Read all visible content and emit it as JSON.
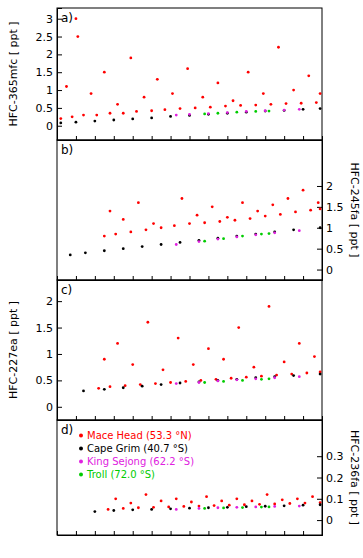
{
  "chart_data": [
    {
      "type": "scatter",
      "title": "a)",
      "y_label": "HFC-365mfc [ ppt ]",
      "xlim": [
        0,
        14
      ],
      "xticks": [
        0,
        1,
        2,
        3,
        4,
        5,
        6,
        7,
        8,
        9,
        10,
        11,
        12,
        13,
        14
      ],
      "tick_labels": "y",
      "ylim": [
        -0.4,
        3.3
      ],
      "yticks": [
        0,
        0.5,
        1,
        1.5,
        2,
        2.5,
        3
      ],
      "series": [
        {
          "color": "#ff0000",
          "marker": "circle",
          "x": [
            0.2,
            0.5,
            0.8,
            1.0,
            1.1,
            1.4,
            1.8,
            2.1,
            2.5,
            2.8,
            3.2,
            3.5,
            3.9,
            4.2,
            4.6,
            5.0,
            5.3,
            5.7,
            6.1,
            6.5,
            6.9,
            7.3,
            7.7,
            8.1,
            8.5,
            8.9,
            9.3,
            9.7,
            10.1,
            10.5,
            10.9,
            11.3,
            11.7,
            12.1,
            12.5,
            12.9,
            13.3,
            13.7,
            13.9
          ],
          "values": [
            0.2,
            1.1,
            0.25,
            3.0,
            2.5,
            0.3,
            0.9,
            0.3,
            1.5,
            0.35,
            0.6,
            0.35,
            1.9,
            0.4,
            0.8,
            0.42,
            1.3,
            0.45,
            0.9,
            0.48,
            1.6,
            0.5,
            0.8,
            0.52,
            1.2,
            0.55,
            0.7,
            0.57,
            1.5,
            0.58,
            0.9,
            0.6,
            2.2,
            0.62,
            1.0,
            0.63,
            1.4,
            0.65,
            0.9
          ]
        },
        {
          "color": "#000000",
          "marker": "circle",
          "x": [
            0.2,
            1,
            2,
            3,
            4,
            5,
            6,
            7,
            8,
            9,
            10,
            11,
            12,
            13,
            13.9
          ],
          "values": [
            0.08,
            0.1,
            0.13,
            0.16,
            0.19,
            0.22,
            0.26,
            0.29,
            0.32,
            0.35,
            0.38,
            0.41,
            0.43,
            0.46,
            0.48
          ]
        },
        {
          "color": "#e020e0",
          "marker": "circle",
          "x": [
            6.3,
            7,
            8,
            9,
            10,
            11,
            12,
            12.8
          ],
          "values": [
            0.3,
            0.32,
            0.34,
            0.37,
            0.4,
            0.42,
            0.44,
            0.46
          ]
        },
        {
          "color": "#00cc00",
          "marker": "circle",
          "x": [
            7.8,
            8.5,
            9.5,
            10.5,
            11.2
          ],
          "values": [
            0.33,
            0.35,
            0.38,
            0.4,
            0.41
          ]
        }
      ]
    },
    {
      "type": "scatter",
      "title": "b)",
      "y2_label": "HFC-245fa [ ppt ]",
      "xlim": [
        0,
        14
      ],
      "xticks": [
        0,
        1,
        2,
        3,
        4,
        5,
        6,
        7,
        8,
        9,
        10,
        11,
        12,
        13,
        14
      ],
      "tick_labels": "y",
      "y2lim": [
        -0.25,
        3.1
      ],
      "y2ticks": [
        0,
        0.5,
        1,
        1.5,
        2
      ],
      "series": [
        {
          "color": "#ff0000",
          "marker": "circle",
          "axis": "y2",
          "x": [
            2.5,
            2.8,
            3.1,
            3.5,
            3.9,
            4.3,
            4.7,
            5.1,
            5.5,
            6.2,
            6.6,
            7.0,
            7.4,
            7.8,
            8.2,
            8.6,
            9.0,
            9.4,
            9.8,
            10.2,
            10.6,
            11.0,
            11.4,
            11.8,
            12.2,
            12.6,
            13.0,
            13.4,
            13.8,
            13.9
          ],
          "values": [
            0.8,
            1.4,
            0.85,
            1.2,
            0.9,
            1.6,
            0.95,
            1.1,
            1.0,
            1.05,
            1.7,
            1.1,
            1.3,
            1.12,
            1.5,
            1.15,
            1.25,
            1.18,
            1.6,
            1.22,
            1.4,
            1.28,
            1.55,
            1.32,
            1.7,
            1.38,
            1.9,
            1.42,
            1.6,
            1.45
          ]
        },
        {
          "color": "#000000",
          "marker": "circle",
          "axis": "y2",
          "x": [
            0.7,
            1.5,
            2.5,
            3.5,
            4.5,
            5.5,
            6.5,
            7.5,
            8.5,
            9.5,
            10.5,
            11.5,
            12.5,
            13.9
          ],
          "values": [
            0.35,
            0.4,
            0.45,
            0.5,
            0.55,
            0.6,
            0.65,
            0.7,
            0.75,
            0.8,
            0.85,
            0.9,
            0.95,
            1.0
          ]
        },
        {
          "color": "#e020e0",
          "marker": "circle",
          "axis": "y2",
          "x": [
            6.3,
            7.5,
            8.5,
            9.5,
            10.5,
            11.5,
            12.8
          ],
          "values": [
            0.6,
            0.67,
            0.73,
            0.78,
            0.83,
            0.88,
            0.93
          ]
        },
        {
          "color": "#00cc00",
          "marker": "circle",
          "axis": "y2",
          "x": [
            7.8,
            8.8,
            9.8,
            10.8,
            11.2
          ],
          "values": [
            0.68,
            0.74,
            0.8,
            0.85,
            0.86
          ]
        }
      ]
    },
    {
      "type": "scatter",
      "title": "c)",
      "y_label": "HFC-227ea [ ppt ]",
      "xlim": [
        0,
        14
      ],
      "xticks": [
        0,
        1,
        2,
        3,
        4,
        5,
        6,
        7,
        8,
        9,
        10,
        11,
        12,
        13,
        14
      ],
      "tick_labels": "y",
      "ylim": [
        -0.25,
        2.4
      ],
      "yticks": [
        0,
        0.5,
        1,
        1.5,
        2
      ],
      "series": [
        {
          "color": "#ff0000",
          "marker": "circle",
          "x": [
            2.2,
            2.5,
            2.8,
            3.2,
            3.6,
            4.0,
            4.4,
            4.8,
            5.2,
            5.6,
            6.0,
            6.4,
            6.8,
            7.2,
            7.6,
            8.0,
            8.4,
            8.8,
            9.2,
            9.6,
            10.0,
            10.4,
            10.8,
            11.2,
            11.6,
            12.0,
            12.4,
            12.8,
            13.2,
            13.6,
            13.9
          ],
          "values": [
            0.35,
            0.9,
            0.38,
            1.2,
            0.4,
            0.8,
            0.42,
            1.6,
            0.44,
            0.7,
            0.46,
            1.3,
            0.48,
            0.8,
            0.5,
            1.1,
            0.52,
            0.9,
            0.54,
            1.5,
            0.56,
            0.75,
            0.58,
            1.9,
            0.6,
            0.85,
            0.62,
            1.2,
            0.64,
            0.95,
            0.66
          ]
        },
        {
          "color": "#000000",
          "marker": "circle",
          "x": [
            1.4,
            2.5,
            3.5,
            4.5,
            5.5,
            6.5,
            7.5,
            8.5,
            9.5,
            10.5,
            11.5,
            12.5,
            13.9
          ],
          "values": [
            0.3,
            0.33,
            0.36,
            0.39,
            0.42,
            0.45,
            0.47,
            0.5,
            0.52,
            0.55,
            0.57,
            0.59,
            0.62
          ]
        },
        {
          "color": "#e020e0",
          "marker": "circle",
          "x": [
            6.3,
            7.5,
            8.5,
            9.5,
            10.5,
            11.5,
            12.8
          ],
          "values": [
            0.44,
            0.46,
            0.49,
            0.51,
            0.53,
            0.55,
            0.57
          ]
        },
        {
          "color": "#00cc00",
          "marker": "circle",
          "x": [
            7.8,
            8.8,
            9.8,
            10.8,
            11.2
          ],
          "values": [
            0.46,
            0.48,
            0.5,
            0.52,
            0.53
          ]
        }
      ]
    },
    {
      "type": "scatter",
      "title": "d)",
      "y2_label": "HFC-236fa [ ppt ]",
      "legend": "upper left",
      "xlim": [
        0,
        14
      ],
      "xticks": [
        0,
        1,
        2,
        3,
        4,
        5,
        6,
        7,
        8,
        9,
        10,
        11,
        12,
        13,
        14
      ],
      "tick_labels": "y",
      "y2lim": [
        -0.07,
        0.47
      ],
      "y2ticks": [
        0,
        0.1,
        0.2,
        0.3
      ],
      "series": [
        {
          "name": "Mace Head (53.3 °N)",
          "color": "#ff0000",
          "marker": "circle",
          "axis": "y2",
          "x": [
            2.7,
            3.1,
            3.5,
            3.9,
            4.3,
            4.7,
            5.1,
            5.5,
            5.9,
            6.3,
            6.7,
            7.1,
            7.5,
            7.9,
            8.3,
            8.7,
            9.1,
            9.5,
            9.9,
            10.3,
            10.7,
            11.1,
            11.5,
            11.9,
            12.3,
            12.7,
            13.1,
            13.5,
            13.9
          ],
          "values": [
            0.05,
            0.1,
            0.055,
            0.08,
            0.058,
            0.12,
            0.06,
            0.09,
            0.062,
            0.1,
            0.064,
            0.085,
            0.066,
            0.11,
            0.068,
            0.09,
            0.07,
            0.1,
            0.072,
            0.09,
            0.074,
            0.12,
            0.076,
            0.095,
            0.078,
            0.1,
            0.08,
            0.11,
            0.082
          ]
        },
        {
          "name": "Cape Grim (40.7 °S)",
          "color": "#000000",
          "marker": "circle",
          "axis": "y2",
          "x": [
            2.0,
            3,
            4,
            5,
            6,
            7,
            8,
            9,
            10,
            11,
            12,
            13,
            13.9
          ],
          "values": [
            0.04,
            0.045,
            0.048,
            0.05,
            0.053,
            0.056,
            0.058,
            0.06,
            0.063,
            0.065,
            0.067,
            0.07,
            0.072
          ]
        },
        {
          "name": "King Sejong (62.2 °S)",
          "color": "#e020e0",
          "marker": "circle",
          "axis": "y2",
          "x": [
            6.3,
            7.5,
            8.5,
            9.5,
            10.5,
            11.5,
            12.8
          ],
          "values": [
            0.05,
            0.055,
            0.058,
            0.06,
            0.062,
            0.064,
            0.066
          ]
        },
        {
          "name": "Troll (72.0 °S)",
          "color": "#00cc00",
          "marker": "circle",
          "axis": "y2",
          "x": [
            7.8,
            8.8,
            9.8,
            10.8,
            11.2
          ],
          "values": [
            0.055,
            0.057,
            0.059,
            0.061,
            0.062
          ]
        }
      ]
    }
  ]
}
